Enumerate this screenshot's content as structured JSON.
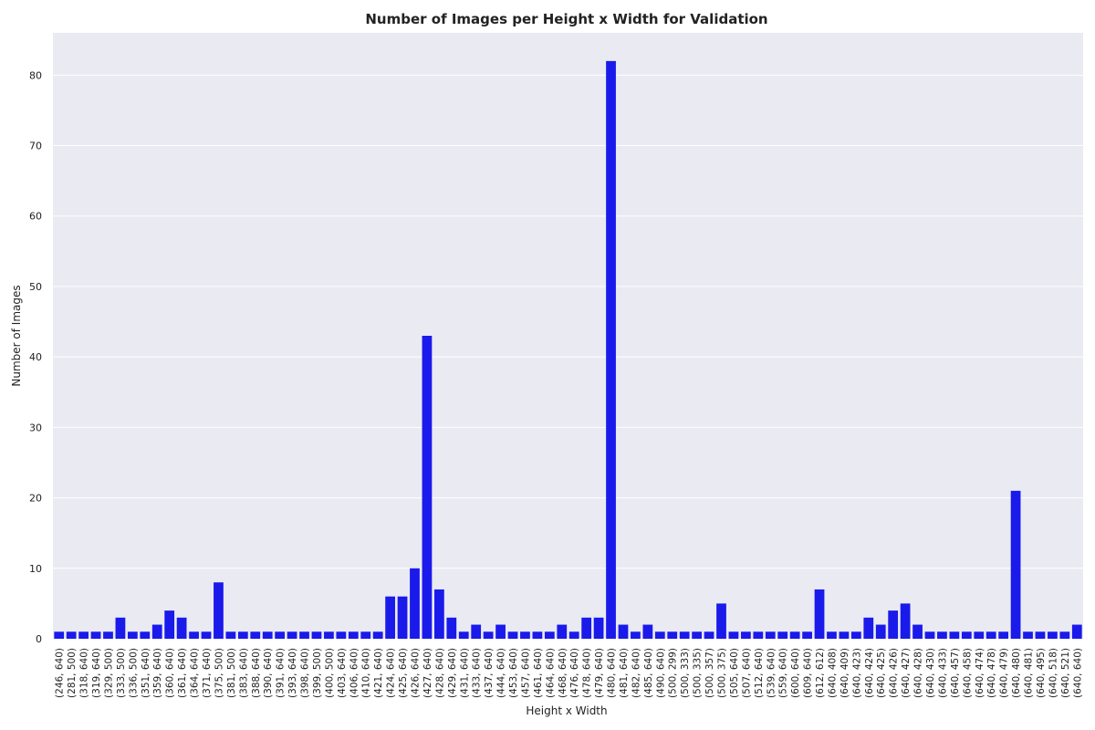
{
  "chart_data": {
    "type": "bar",
    "title": "Number of Images per Height x Width for Validation",
    "xlabel": "Height x Width",
    "ylabel": "Number of Images",
    "ylim": [
      0,
      86
    ],
    "yticks": [
      0,
      10,
      20,
      30,
      40,
      50,
      60,
      70,
      80
    ],
    "grid": true,
    "legend": "none",
    "colors": {
      "bar": "#1a1aeb",
      "plot_background": "#eaeaf2",
      "grid": "#ffffff"
    },
    "categories": [
      "(246, 640)",
      "(281, 500)",
      "(318, 640)",
      "(319, 640)",
      "(329, 500)",
      "(333, 500)",
      "(336, 500)",
      "(351, 640)",
      "(359, 640)",
      "(360, 640)",
      "(361, 640)",
      "(364, 640)",
      "(371, 640)",
      "(375, 500)",
      "(381, 500)",
      "(383, 640)",
      "(388, 640)",
      "(390, 640)",
      "(391, 640)",
      "(393, 640)",
      "(398, 640)",
      "(399, 500)",
      "(400, 500)",
      "(403, 640)",
      "(406, 640)",
      "(410, 640)",
      "(421, 640)",
      "(424, 640)",
      "(425, 640)",
      "(426, 640)",
      "(427, 640)",
      "(428, 640)",
      "(429, 640)",
      "(431, 640)",
      "(433, 640)",
      "(437, 640)",
      "(444, 640)",
      "(453, 640)",
      "(457, 640)",
      "(461, 640)",
      "(464, 640)",
      "(468, 640)",
      "(476, 640)",
      "(478, 640)",
      "(479, 640)",
      "(480, 640)",
      "(481, 640)",
      "(482, 640)",
      "(485, 640)",
      "(490, 640)",
      "(500, 299)",
      "(500, 333)",
      "(500, 335)",
      "(500, 357)",
      "(500, 375)",
      "(505, 640)",
      "(507, 640)",
      "(512, 640)",
      "(539, 640)",
      "(559, 640)",
      "(600, 640)",
      "(609, 640)",
      "(612, 612)",
      "(640, 408)",
      "(640, 409)",
      "(640, 423)",
      "(640, 424)",
      "(640, 425)",
      "(640, 426)",
      "(640, 427)",
      "(640, 428)",
      "(640, 430)",
      "(640, 433)",
      "(640, 457)",
      "(640, 458)",
      "(640, 474)",
      "(640, 478)",
      "(640, 479)",
      "(640, 480)",
      "(640, 481)",
      "(640, 495)",
      "(640, 518)",
      "(640, 521)",
      "(640, 640)"
    ],
    "values": [
      1,
      1,
      1,
      1,
      1,
      3,
      1,
      1,
      2,
      4,
      3,
      1,
      1,
      8,
      1,
      1,
      1,
      1,
      1,
      1,
      1,
      1,
      1,
      1,
      1,
      1,
      1,
      6,
      6,
      10,
      43,
      7,
      3,
      1,
      2,
      1,
      2,
      1,
      1,
      1,
      1,
      2,
      1,
      3,
      3,
      82,
      2,
      1,
      2,
      1,
      1,
      1,
      1,
      1,
      5,
      1,
      1,
      1,
      1,
      1,
      1,
      1,
      7,
      1,
      1,
      1,
      3,
      2,
      4,
      5,
      2,
      1,
      1,
      1,
      1,
      1,
      1,
      1,
      21,
      1,
      1,
      1,
      1,
      2
    ]
  }
}
